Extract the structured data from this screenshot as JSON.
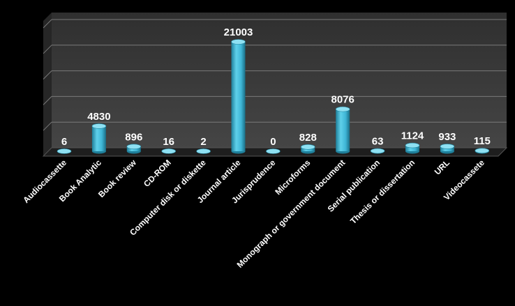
{
  "chart_data": {
    "type": "bar",
    "categories": [
      "Audiocassette",
      "Book Analytic",
      "Book review",
      "CD-ROM",
      "Computer disk or diskette",
      "Journal article",
      "Jurisprudence",
      "Microforms",
      "Monograph or government document",
      "Serial publication",
      "Thesis or dissertation",
      "URL",
      "Videocassete"
    ],
    "values": [
      6,
      4830,
      896,
      16,
      2,
      21003,
      0,
      828,
      8076,
      63,
      1124,
      933,
      115
    ],
    "value_labels": [
      "6",
      "4830",
      "896",
      "16",
      "2",
      "21003",
      "0",
      "828",
      "8076",
      "63",
      "1124",
      "933",
      "115"
    ],
    "ylim": [
      0,
      25000
    ],
    "grid": true,
    "legend": "none",
    "colors": {
      "background": "#000000",
      "plot_wall": "#3a3a3a",
      "bar": "#3fb6d6",
      "bar_dark": "#1f7f9a",
      "bar_top": "#8ee0f2",
      "grid": "#7a7a7a"
    }
  }
}
